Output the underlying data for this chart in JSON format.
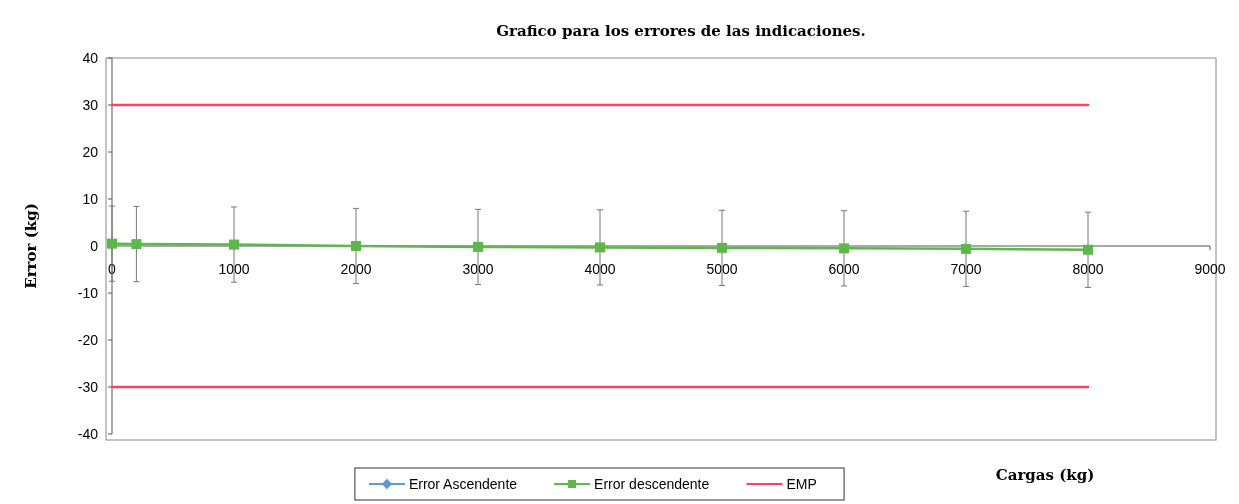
{
  "chart_data": {
    "type": "line",
    "title": "Grafico para los errores de las indicaciones.",
    "xlabel": "Cargas (kg)",
    "ylabel": "Error (kg)",
    "x": [
      0,
      200,
      1000,
      2000,
      3000,
      4000,
      5000,
      6000,
      7000,
      8000
    ],
    "series": [
      {
        "name": "Error Ascendente",
        "color": "#5b9bd5",
        "marker": "diamond",
        "values": [
          null,
          null,
          null,
          null,
          null,
          null,
          null,
          null,
          null,
          null
        ]
      },
      {
        "name": "Error descendente",
        "color": "#5cb848",
        "marker": "square",
        "values": [
          0.5,
          0.4,
          0.3,
          0,
          -0.2,
          -0.3,
          -0.4,
          -0.5,
          -0.6,
          -0.8
        ],
        "errors": [
          8,
          8,
          8,
          8,
          8,
          8,
          8,
          8,
          8,
          8
        ]
      },
      {
        "name": "EMP",
        "color": "#ff4060",
        "marker": "none",
        "values": [
          30,
          30,
          30,
          30,
          30,
          30,
          30,
          30,
          30,
          30
        ]
      },
      {
        "color": "#ff4060",
        "marker": "none",
        "values": [
          -30,
          -30,
          -30,
          -30,
          -30,
          -30,
          -30,
          -30,
          -30,
          -30
        ]
      }
    ],
    "xlim": [
      0,
      9000
    ],
    "xticks": [
      0,
      1000,
      2000,
      3000,
      4000,
      5000,
      6000,
      7000,
      8000,
      9000
    ],
    "ylim": [
      -40,
      40
    ],
    "yticks": [
      -40,
      -30,
      -20,
      -10,
      0,
      10,
      20,
      30,
      40
    ],
    "grid": false,
    "legend": "bottom"
  }
}
